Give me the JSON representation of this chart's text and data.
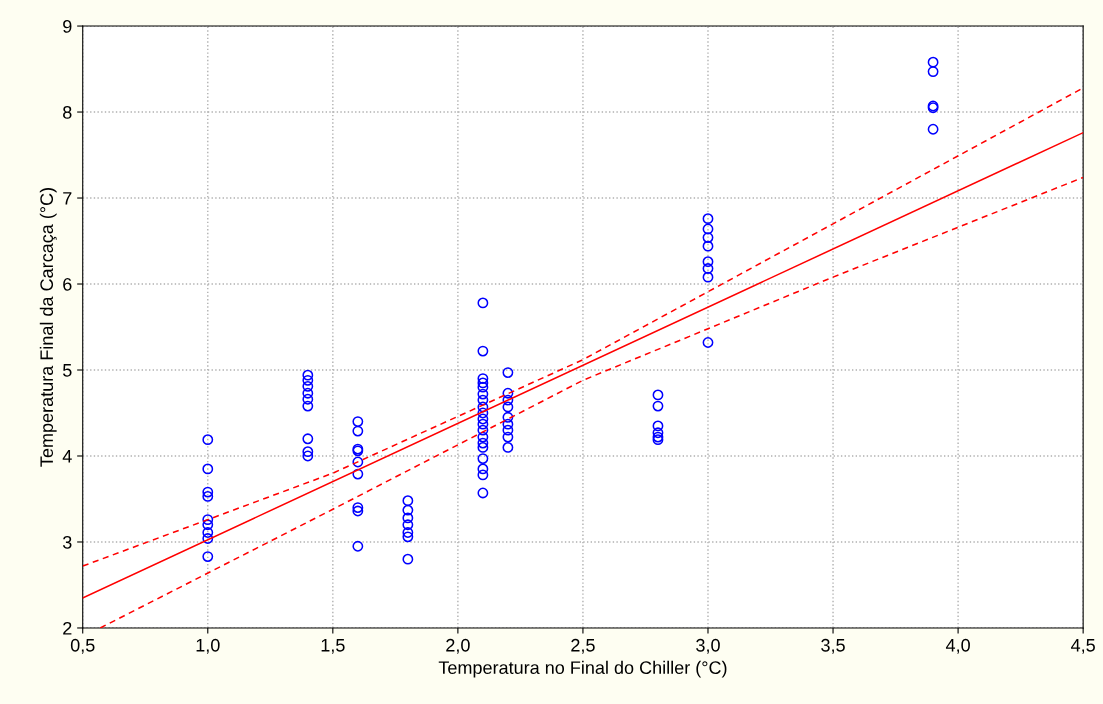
{
  "chart_data": {
    "type": "scatter",
    "xlabel": "Temperatura no Final do Chiller (°C)",
    "ylabel": "Temperatura Final da Carcaça (°C)",
    "xlim": [
      0.5,
      4.5
    ],
    "ylim": [
      2,
      9
    ],
    "xticks": [
      {
        "value": 0.5,
        "label": "0,5"
      },
      {
        "value": 1.0,
        "label": "1,0"
      },
      {
        "value": 1.5,
        "label": "1,5"
      },
      {
        "value": 2.0,
        "label": "2,0"
      },
      {
        "value": 2.5,
        "label": "2,5"
      },
      {
        "value": 3.0,
        "label": "3,0"
      },
      {
        "value": 3.5,
        "label": "3,5"
      },
      {
        "value": 4.0,
        "label": "4,0"
      },
      {
        "value": 4.5,
        "label": "4,5"
      }
    ],
    "yticks": [
      2,
      3,
      4,
      5,
      6,
      7,
      8,
      9
    ],
    "grid": true,
    "legend": false,
    "series": [
      {
        "marker": "circle",
        "color": "#0000ff",
        "x": [
          1.0,
          1.0,
          1.0,
          1.0,
          1.0,
          1.0,
          1.0,
          1.0,
          1.0,
          1.4,
          1.4,
          1.4,
          1.4,
          1.4,
          1.4,
          1.4,
          1.4,
          1.4,
          1.6,
          1.6,
          1.6,
          1.6,
          1.6,
          1.6,
          1.6,
          1.6,
          1.6,
          1.8,
          1.8,
          1.8,
          1.8,
          1.8,
          1.8,
          1.8,
          2.1,
          2.1,
          2.1,
          2.1,
          2.1,
          2.1,
          2.1,
          2.1,
          2.1,
          2.1,
          2.1,
          2.1,
          2.1,
          2.1,
          2.1,
          2.1,
          2.1,
          2.1,
          2.1,
          2.2,
          2.2,
          2.2,
          2.2,
          2.2,
          2.2,
          2.2,
          2.2,
          2.2,
          2.8,
          2.8,
          2.8,
          2.8,
          2.8,
          2.8,
          3.0,
          3.0,
          3.0,
          3.0,
          3.0,
          3.0,
          3.0,
          3.0,
          3.9,
          3.9,
          3.9,
          3.9,
          3.9
        ],
        "values": [
          4.19,
          3.85,
          3.58,
          3.53,
          3.26,
          3.2,
          3.11,
          3.04,
          2.83,
          4.94,
          4.88,
          4.81,
          4.73,
          4.66,
          4.58,
          4.2,
          4.05,
          4.0,
          4.4,
          4.29,
          4.08,
          4.06,
          3.93,
          3.79,
          3.4,
          3.36,
          2.95,
          3.48,
          3.37,
          3.28,
          3.2,
          3.11,
          3.06,
          2.8,
          5.78,
          5.22,
          4.9,
          4.85,
          4.8,
          4.72,
          4.65,
          4.57,
          4.5,
          4.43,
          4.37,
          4.3,
          4.22,
          4.15,
          4.1,
          3.97,
          3.85,
          3.78,
          3.57,
          4.97,
          4.73,
          4.65,
          4.57,
          4.45,
          4.37,
          4.3,
          4.22,
          4.1,
          4.71,
          4.58,
          4.35,
          4.27,
          4.22,
          4.19,
          6.76,
          6.64,
          6.54,
          6.44,
          6.26,
          6.18,
          6.08,
          5.32,
          8.58,
          8.47,
          8.07,
          8.05,
          7.8
        ]
      },
      {
        "type": "line",
        "marker": "none",
        "line_style": "solid",
        "color": "#ff0000",
        "x": [
          0.5,
          4.5
        ],
        "values": [
          2.35,
          7.76
        ]
      },
      {
        "type": "line",
        "marker": "none",
        "line_style": "dashed",
        "color": "#ff0000",
        "x": [
          0.5,
          1.5,
          2.5,
          3.5,
          4.5
        ],
        "values": [
          2.72,
          3.8,
          5.12,
          6.7,
          8.28
        ]
      },
      {
        "type": "line",
        "marker": "none",
        "line_style": "dashed",
        "color": "#ff0000",
        "x": [
          0.57,
          1.5,
          2.5,
          3.5,
          4.5
        ],
        "values": [
          2.0,
          3.38,
          4.88,
          6.08,
          7.24
        ]
      }
    ]
  }
}
